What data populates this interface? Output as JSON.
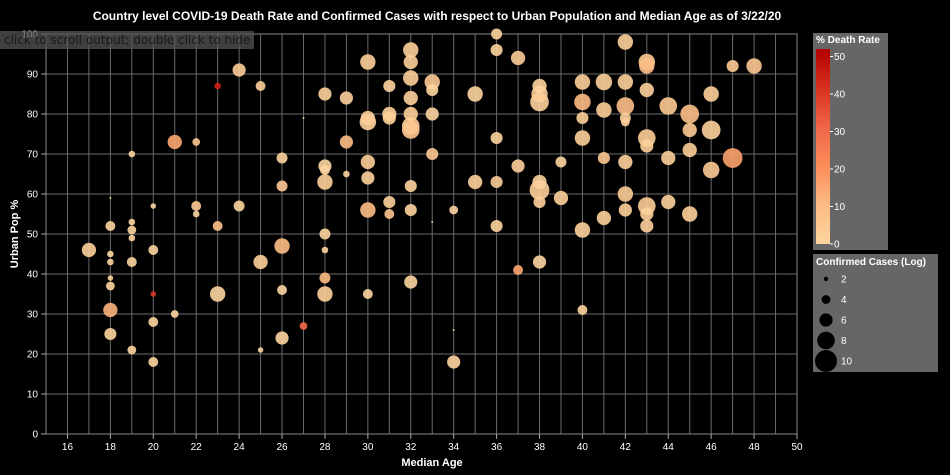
{
  "output_hint": "click to scroll output; double click to hide",
  "chart_data": {
    "type": "scatter",
    "title": "Country level COVID-19 Death Rate and Confirmed Cases with respect to Urban Population and Median Age as of 3/22/20",
    "xlabel": "Median Age",
    "ylabel": "Urban Pop %",
    "xlim": [
      15,
      50
    ],
    "ylim": [
      0,
      100
    ],
    "x_ticks": [
      16,
      18,
      20,
      22,
      24,
      26,
      28,
      30,
      32,
      34,
      36,
      38,
      40,
      42,
      44,
      46,
      48,
      50
    ],
    "y_ticks": [
      0,
      10,
      20,
      30,
      40,
      50,
      60,
      70,
      80,
      90,
      100
    ],
    "grid": true,
    "background": "#000000",
    "legend_color": {
      "title": "% Death Rate",
      "ticks": [
        0,
        10,
        20,
        30,
        40,
        50
      ],
      "domain": [
        0,
        52
      ],
      "gradient": [
        "#fdd49e",
        "#fdbb84",
        "#fc8d59",
        "#ef6548",
        "#d7301f",
        "#b30000"
      ],
      "background": "#666666"
    },
    "legend_size": {
      "title": "Confirmed Cases (Log)",
      "entries": [
        2,
        4,
        6,
        8,
        10
      ],
      "background": "#666666"
    },
    "points": [
      {
        "x": 17,
        "y": 46,
        "c": 6.5,
        "d": 2
      },
      {
        "x": 18,
        "y": 59,
        "c": 0.5,
        "d": 0
      },
      {
        "x": 18,
        "y": 52,
        "c": 4.5,
        "d": 0
      },
      {
        "x": 18,
        "y": 45,
        "c": 3,
        "d": 0
      },
      {
        "x": 18,
        "y": 43,
        "c": 3,
        "d": 0
      },
      {
        "x": 18,
        "y": 39,
        "c": 2.5,
        "d": 0
      },
      {
        "x": 18,
        "y": 37,
        "c": 4,
        "d": 0
      },
      {
        "x": 18,
        "y": 31,
        "c": 6.5,
        "d": 12
      },
      {
        "x": 18,
        "y": 25,
        "c": 5.5,
        "d": 0
      },
      {
        "x": 19,
        "y": 70,
        "c": 3,
        "d": 0
      },
      {
        "x": 19,
        "y": 53,
        "c": 3,
        "d": 0
      },
      {
        "x": 19,
        "y": 51,
        "c": 4,
        "d": 0
      },
      {
        "x": 19,
        "y": 49,
        "c": 3,
        "d": 0
      },
      {
        "x": 19,
        "y": 43,
        "c": 4.5,
        "d": 0
      },
      {
        "x": 19,
        "y": 21,
        "c": 4,
        "d": 0
      },
      {
        "x": 20,
        "y": 57,
        "c": 2.5,
        "d": 0
      },
      {
        "x": 20,
        "y": 46,
        "c": 4.5,
        "d": 0
      },
      {
        "x": 20,
        "y": 35,
        "c": 2.5,
        "d": 40
      },
      {
        "x": 20,
        "y": 28,
        "c": 4.5,
        "d": 0
      },
      {
        "x": 20,
        "y": 18,
        "c": 4.5,
        "d": 0
      },
      {
        "x": 21,
        "y": 73,
        "c": 6.5,
        "d": 15
      },
      {
        "x": 21,
        "y": 30,
        "c": 3.5,
        "d": 0
      },
      {
        "x": 22,
        "y": 73,
        "c": 3.5,
        "d": 6
      },
      {
        "x": 22,
        "y": 57,
        "c": 4.5,
        "d": 5
      },
      {
        "x": 22,
        "y": 55,
        "c": 3,
        "d": 0
      },
      {
        "x": 23,
        "y": 87,
        "c": 3,
        "d": 45
      },
      {
        "x": 23,
        "y": 52,
        "c": 4.5,
        "d": 8
      },
      {
        "x": 23,
        "y": 35,
        "c": 7,
        "d": 0
      },
      {
        "x": 24,
        "y": 91,
        "c": 6,
        "d": 3
      },
      {
        "x": 24,
        "y": 57,
        "c": 5,
        "d": 0
      },
      {
        "x": 25,
        "y": 87,
        "c": 4.5,
        "d": 3
      },
      {
        "x": 25,
        "y": 43,
        "c": 6.5,
        "d": 2
      },
      {
        "x": 25,
        "y": 21,
        "c": 2.5,
        "d": 0
      },
      {
        "x": 26,
        "y": 69,
        "c": 5,
        "d": 0
      },
      {
        "x": 26,
        "y": 62,
        "c": 5,
        "d": 5
      },
      {
        "x": 26,
        "y": 47,
        "c": 7,
        "d": 10
      },
      {
        "x": 26,
        "y": 36,
        "c": 4.5,
        "d": 0
      },
      {
        "x": 26,
        "y": 24,
        "c": 6,
        "d": 0
      },
      {
        "x": 27,
        "y": 79,
        "c": 0.5,
        "d": 0
      },
      {
        "x": 27,
        "y": 27,
        "c": 3.5,
        "d": 30
      },
      {
        "x": 28,
        "y": 85,
        "c": 6,
        "d": 2
      },
      {
        "x": 28,
        "y": 67,
        "c": 6,
        "d": 0
      },
      {
        "x": 28,
        "y": 66,
        "c": 4.5,
        "d": 0
      },
      {
        "x": 28,
        "y": 63,
        "c": 7,
        "d": 2
      },
      {
        "x": 28,
        "y": 50,
        "c": 5,
        "d": 0
      },
      {
        "x": 28,
        "y": 46,
        "c": 3,
        "d": 0
      },
      {
        "x": 28,
        "y": 39,
        "c": 5,
        "d": 10
      },
      {
        "x": 28,
        "y": 35,
        "c": 7,
        "d": 2
      },
      {
        "x": 29,
        "y": 84,
        "c": 6,
        "d": 2
      },
      {
        "x": 29,
        "y": 73,
        "c": 6,
        "d": 10
      },
      {
        "x": 29,
        "y": 65,
        "c": 3,
        "d": 0
      },
      {
        "x": 30,
        "y": 93,
        "c": 7,
        "d": 2
      },
      {
        "x": 30,
        "y": 79,
        "c": 6.5,
        "d": 3
      },
      {
        "x": 30,
        "y": 78,
        "c": 7.5,
        "d": 1
      },
      {
        "x": 30,
        "y": 68,
        "c": 6.5,
        "d": 3
      },
      {
        "x": 30,
        "y": 64,
        "c": 6,
        "d": 2
      },
      {
        "x": 30,
        "y": 56,
        "c": 7,
        "d": 10
      },
      {
        "x": 30,
        "y": 35,
        "c": 4.5,
        "d": 0
      },
      {
        "x": 31,
        "y": 87,
        "c": 5.5,
        "d": 0
      },
      {
        "x": 31,
        "y": 80,
        "c": 6.5,
        "d": 1
      },
      {
        "x": 31,
        "y": 79,
        "c": 6,
        "d": 2
      },
      {
        "x": 31,
        "y": 58,
        "c": 5.5,
        "d": 2
      },
      {
        "x": 31,
        "y": 55,
        "c": 4.5,
        "d": 7
      },
      {
        "x": 32,
        "y": 96,
        "c": 7,
        "d": 2
      },
      {
        "x": 32,
        "y": 93,
        "c": 6.5,
        "d": 2
      },
      {
        "x": 32,
        "y": 89,
        "c": 7,
        "d": 2
      },
      {
        "x": 32,
        "y": 84,
        "c": 6.5,
        "d": 1
      },
      {
        "x": 32,
        "y": 80,
        "c": 6.5,
        "d": 2
      },
      {
        "x": 32,
        "y": 77,
        "c": 8,
        "d": 4
      },
      {
        "x": 32,
        "y": 76,
        "c": 8,
        "d": 6
      },
      {
        "x": 32,
        "y": 62,
        "c": 5.5,
        "d": 0
      },
      {
        "x": 32,
        "y": 56,
        "c": 5.5,
        "d": 0
      },
      {
        "x": 32,
        "y": 38,
        "c": 6,
        "d": 0
      },
      {
        "x": 33,
        "y": 88,
        "c": 7,
        "d": 4
      },
      {
        "x": 33,
        "y": 86,
        "c": 5.5,
        "d": 0
      },
      {
        "x": 33,
        "y": 80,
        "c": 6,
        "d": 0
      },
      {
        "x": 33,
        "y": 70,
        "c": 5.5,
        "d": 5
      },
      {
        "x": 33,
        "y": 53,
        "c": 0.5,
        "d": 0
      },
      {
        "x": 34,
        "y": 56,
        "c": 4,
        "d": 0
      },
      {
        "x": 34,
        "y": 26,
        "c": 0.5,
        "d": 0
      },
      {
        "x": 34,
        "y": 18,
        "c": 6,
        "d": 0
      },
      {
        "x": 35,
        "y": 85,
        "c": 7,
        "d": 0
      },
      {
        "x": 35,
        "y": 63,
        "c": 6.5,
        "d": 1
      },
      {
        "x": 36,
        "y": 100,
        "c": 5,
        "d": 0
      },
      {
        "x": 36,
        "y": 96,
        "c": 5.5,
        "d": 0
      },
      {
        "x": 36,
        "y": 74,
        "c": 5.5,
        "d": 0
      },
      {
        "x": 36,
        "y": 63,
        "c": 5.5,
        "d": 3
      },
      {
        "x": 36,
        "y": 52,
        "c": 5.5,
        "d": 0
      },
      {
        "x": 37,
        "y": 94,
        "c": 6.5,
        "d": 3
      },
      {
        "x": 37,
        "y": 67,
        "c": 6,
        "d": 2
      },
      {
        "x": 37,
        "y": 41,
        "c": 4.5,
        "d": 15
      },
      {
        "x": 38,
        "y": 87,
        "c": 6.5,
        "d": 0
      },
      {
        "x": 38,
        "y": 85,
        "c": 7.5,
        "d": 3
      },
      {
        "x": 38,
        "y": 83,
        "c": 8.5,
        "d": 1
      },
      {
        "x": 38,
        "y": 63,
        "c": 6.5,
        "d": 1
      },
      {
        "x": 38,
        "y": 61,
        "c": 9,
        "d": 2
      },
      {
        "x": 38,
        "y": 58,
        "c": 5.5,
        "d": 2
      },
      {
        "x": 38,
        "y": 43,
        "c": 6,
        "d": 0
      },
      {
        "x": 39,
        "y": 68,
        "c": 5,
        "d": 0
      },
      {
        "x": 39,
        "y": 59,
        "c": 6.5,
        "d": 2
      },
      {
        "x": 40,
        "y": 88,
        "c": 7,
        "d": 2
      },
      {
        "x": 40,
        "y": 83,
        "c": 7.5,
        "d": 10
      },
      {
        "x": 40,
        "y": 79,
        "c": 5.5,
        "d": 2
      },
      {
        "x": 40,
        "y": 74,
        "c": 7,
        "d": 2
      },
      {
        "x": 40,
        "y": 51,
        "c": 7,
        "d": 1
      },
      {
        "x": 40,
        "y": 31,
        "c": 4.5,
        "d": 0
      },
      {
        "x": 41,
        "y": 88,
        "c": 7.5,
        "d": 2
      },
      {
        "x": 41,
        "y": 81,
        "c": 7,
        "d": 3
      },
      {
        "x": 41,
        "y": 69,
        "c": 5.5,
        "d": 5
      },
      {
        "x": 41,
        "y": 54,
        "c": 6.5,
        "d": 2
      },
      {
        "x": 42,
        "y": 98,
        "c": 7,
        "d": 2
      },
      {
        "x": 42,
        "y": 88,
        "c": 7,
        "d": 2
      },
      {
        "x": 42,
        "y": 82,
        "c": 8,
        "d": 9
      },
      {
        "x": 42,
        "y": 79,
        "c": 5,
        "d": 1
      },
      {
        "x": 42,
        "y": 78,
        "c": 4,
        "d": 2
      },
      {
        "x": 42,
        "y": 68,
        "c": 6.5,
        "d": 2
      },
      {
        "x": 42,
        "y": 60,
        "c": 7,
        "d": 3
      },
      {
        "x": 42,
        "y": 56,
        "c": 6,
        "d": 2
      },
      {
        "x": 43,
        "y": 93,
        "c": 7.5,
        "d": 5
      },
      {
        "x": 43,
        "y": 92,
        "c": 7,
        "d": 9
      },
      {
        "x": 43,
        "y": 86,
        "c": 6.5,
        "d": 2
      },
      {
        "x": 43,
        "y": 74,
        "c": 8,
        "d": 3
      },
      {
        "x": 43,
        "y": 72,
        "c": 6,
        "d": 2
      },
      {
        "x": 43,
        "y": 57,
        "c": 8,
        "d": 3
      },
      {
        "x": 43,
        "y": 55,
        "c": 6,
        "d": 1
      },
      {
        "x": 43,
        "y": 52,
        "c": 6,
        "d": 2
      },
      {
        "x": 44,
        "y": 82,
        "c": 8,
        "d": 4
      },
      {
        "x": 44,
        "y": 69,
        "c": 6.5,
        "d": 2
      },
      {
        "x": 44,
        "y": 58,
        "c": 6.5,
        "d": 1
      },
      {
        "x": 45,
        "y": 80,
        "c": 8.5,
        "d": 9
      },
      {
        "x": 45,
        "y": 76,
        "c": 6.5,
        "d": 4
      },
      {
        "x": 45,
        "y": 71,
        "c": 6.5,
        "d": 3
      },
      {
        "x": 45,
        "y": 55,
        "c": 7,
        "d": 2
      },
      {
        "x": 46,
        "y": 85,
        "c": 7,
        "d": 2
      },
      {
        "x": 46,
        "y": 76,
        "c": 8.5,
        "d": 2
      },
      {
        "x": 46,
        "y": 66,
        "c": 7.5,
        "d": 4
      },
      {
        "x": 47,
        "y": 92,
        "c": 5.5,
        "d": 4
      },
      {
        "x": 47,
        "y": 69,
        "c": 9,
        "d": 16
      },
      {
        "x": 48,
        "y": 92,
        "c": 7,
        "d": 5
      }
    ]
  }
}
